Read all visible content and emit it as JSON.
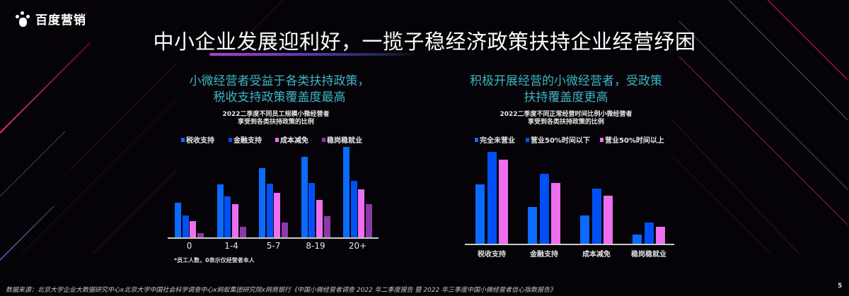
{
  "logo": {
    "text": "百度营销",
    "icon": "baidu-paw-icon"
  },
  "title": "中小企业发展迎利好，一揽子稳经济政策扶持企业经营纾困",
  "left_panel": {
    "subtitle_line1": "小微经营者受益于各类扶持政策，",
    "subtitle_line2": "税收支持政策覆盖度最高",
    "chart_title_line1": "2022二季度不同员工规模小微经营者",
    "chart_title_line2": "享受到各类扶持政策的比例",
    "footnote": "*员工人数，0表示仅经营者本人"
  },
  "right_panel": {
    "subtitle_line1": "积极开展经营的小微经营者，受政策",
    "subtitle_line2": "扶持覆盖度更高",
    "chart_title_line1": "2022二季度不同正常经营时间比例小微经营者",
    "chart_title_line2": "享受到各类扶持政策的比例"
  },
  "footer": {
    "source": "数据来源：北京大学企业大数据研究中心x北京大学中国社会科学调查中心x蚂蚁集团研究院x网商银行《中国小微经营者调查 2022 年二季度报告 暨 2022 年三季度中国小微经营者信心指数报告》",
    "page_number": "5"
  },
  "colors": {
    "series_blue_light": "#0a6cff",
    "series_blue": "#0050f5",
    "series_pink": "#ee6ef0",
    "series_purple": "#8a3aa8",
    "subtitle_teal": "#3db6c6"
  },
  "chart_data": [
    {
      "type": "bar",
      "title": "2022二季度不同员工规模小微经营者享受到各类扶持政策的比例",
      "xlabel": "员工人数",
      "ylabel": "",
      "categories": [
        "0",
        "1-4",
        "5-7",
        "8-19",
        "20+"
      ],
      "series": [
        {
          "name": "税收支持",
          "color": "#0a6cff",
          "values": [
            49,
            75,
            98,
            114,
            128
          ]
        },
        {
          "name": "金融支持",
          "color": "#0050f5",
          "values": [
            31,
            58,
            76,
            77,
            80
          ]
        },
        {
          "name": "成本减免",
          "color": "#ee6ef0",
          "values": [
            23,
            47,
            63,
            53,
            68
          ]
        },
        {
          "name": "稳岗稳就业",
          "color": "#8a3aa8",
          "values": [
            6,
            15,
            21,
            30,
            47
          ]
        }
      ],
      "units": "relative bar height (px), no axis values shown",
      "grid": false,
      "legend_position": "top"
    },
    {
      "type": "bar",
      "title": "2022二季度不同正常经营时间比例小微经营者享受到各类扶持政策的比例",
      "xlabel": "",
      "ylabel": "",
      "categories": [
        "税收支持",
        "金融支持",
        "成本减免",
        "稳岗稳就业"
      ],
      "series": [
        {
          "name": "完全未营业",
          "color": "#0a6cff",
          "values": [
            84,
            52,
            40,
            13
          ]
        },
        {
          "name": "营业50%时间以下",
          "color": "#0050f5",
          "values": [
            130,
            99,
            78,
            30
          ]
        },
        {
          "name": "营业50%时间以上",
          "color": "#ee6ef0",
          "values": [
            119,
            86,
            68,
            24
          ]
        }
      ],
      "units": "relative bar height (px), no axis values shown",
      "grid": false,
      "legend_position": "top"
    }
  ]
}
